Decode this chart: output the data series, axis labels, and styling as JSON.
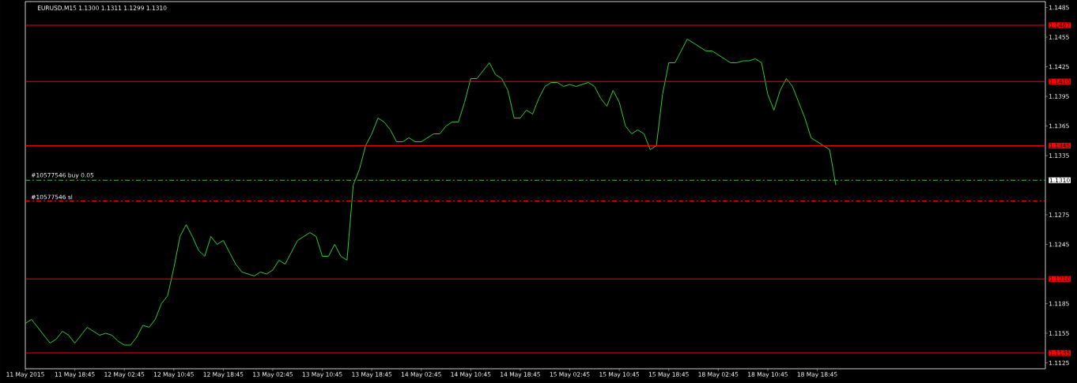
{
  "chart_data": {
    "type": "line",
    "title": "EURUSD,M15  1.1300 1.1311 1.1299 1.1310",
    "categories": [
      "11 May 2015",
      null,
      null,
      null,
      null,
      null,
      null,
      null,
      "11 May 18:45",
      null,
      null,
      null,
      null,
      null,
      null,
      null,
      "12 May 02:45",
      null,
      null,
      null,
      null,
      null,
      null,
      null,
      "12 May 10:45",
      null,
      null,
      null,
      null,
      null,
      null,
      null,
      "12 May 18:45",
      null,
      null,
      null,
      null,
      null,
      null,
      null,
      "13 May 02:45",
      null,
      null,
      null,
      null,
      null,
      null,
      null,
      "13 May 10:45",
      null,
      null,
      null,
      null,
      null,
      null,
      null,
      "13 May 18:45",
      null,
      null,
      null,
      null,
      null,
      null,
      null,
      "14 May 02:45",
      null,
      null,
      null,
      null,
      null,
      null,
      null,
      "14 May 10:45",
      null,
      null,
      null,
      null,
      null,
      null,
      null,
      "14 May 18:45",
      null,
      null,
      null,
      null,
      null,
      null,
      null,
      "15 May 02:45",
      null,
      null,
      null,
      null,
      null,
      null,
      null,
      "15 May 10:45",
      null,
      null,
      null,
      null,
      null,
      null,
      null,
      "15 May 18:45",
      null,
      null,
      null,
      null,
      null,
      null,
      null,
      "18 May 02:45",
      null,
      null,
      null,
      null,
      null,
      null,
      null,
      "18 May 10:45",
      null,
      null,
      null,
      null,
      null,
      null,
      null,
      "18 May 18:45",
      null,
      null,
      null,
      null,
      null,
      null,
      null,
      null,
      null,
      null,
      null,
      null,
      null,
      null,
      null,
      null,
      null,
      null,
      null,
      null,
      null,
      null,
      null,
      null,
      null,
      null,
      null,
      null,
      null,
      null,
      null,
      null,
      null,
      null,
      null,
      null
    ],
    "series": [
      {
        "color": "#32cd32",
        "values": [
          1.1165,
          1.1169,
          1.1161,
          1.1153,
          1.1145,
          1.1149,
          1.1157,
          1.1153,
          1.1145,
          1.1153,
          1.1161,
          1.1157,
          1.1153,
          1.1155,
          1.1153,
          1.1147,
          1.1143,
          1.1143,
          1.1151,
          1.1163,
          1.1161,
          1.1169,
          1.1185,
          1.1193,
          1.1221,
          1.1253,
          1.1265,
          1.1253,
          1.1239,
          1.1233,
          1.1253,
          1.1245,
          1.1249,
          1.1237,
          1.1225,
          1.1217,
          1.1215,
          1.1213,
          1.1217,
          1.1215,
          1.1219,
          1.1229,
          1.1225,
          1.1237,
          1.1249,
          1.1253,
          1.1257,
          1.1253,
          1.1233,
          1.1233,
          1.1245,
          1.1233,
          1.1229,
          1.1305,
          1.1321,
          1.1345,
          1.1357,
          1.1373,
          1.1369,
          1.1361,
          1.1349,
          1.1349,
          1.1353,
          1.1349,
          1.1349,
          1.1353,
          1.1357,
          1.1357,
          1.1365,
          1.1369,
          1.1369,
          1.1389,
          1.1413,
          1.1413,
          1.1421,
          1.1429,
          1.1417,
          1.1413,
          1.1401,
          1.1373,
          1.1373,
          1.1381,
          1.1377,
          1.1393,
          1.1405,
          1.1409,
          1.1409,
          1.1405,
          1.1407,
          1.1405,
          1.1407,
          1.1409,
          1.1405,
          1.1393,
          1.1385,
          1.1401,
          1.1389,
          1.1365,
          1.1357,
          1.1361,
          1.1357,
          1.1341,
          1.1345,
          1.1397,
          1.1429,
          1.1429,
          1.1441,
          1.1453,
          1.1449,
          1.1445,
          1.1441,
          1.1441,
          1.1437,
          1.1433,
          1.1429,
          1.1429,
          1.1431,
          1.1431,
          1.1433,
          1.1429,
          1.1397,
          1.1381,
          1.1401,
          1.1413,
          1.1405,
          1.1389,
          1.1373,
          1.1353,
          1.1349,
          1.1345,
          1.1341,
          1.1305,
          null,
          null,
          null,
          null,
          null,
          null,
          null,
          null,
          null,
          null,
          null,
          null,
          null,
          null,
          null,
          null,
          null,
          null,
          null,
          null,
          null,
          null,
          null,
          null,
          null,
          null,
          null,
          null,
          null,
          null,
          null,
          null,
          null
        ]
      }
    ],
    "ylim": [
      1.1119,
      1.1491
    ],
    "yticks": [
      1.1485,
      1.1455,
      1.1425,
      1.1395,
      1.1365,
      1.1335,
      1.1275,
      1.1245,
      1.1185,
      1.1155,
      1.1125
    ],
    "ref_lines": [
      {
        "axis": "y",
        "value": 1.1467,
        "label": "1.1467",
        "color": "#ff0000",
        "line_style": "solid"
      },
      {
        "axis": "y",
        "value": 1.141,
        "label": "1.1410",
        "color": "#ff0000",
        "line_style": "solid"
      },
      {
        "axis": "y",
        "value": 1.1345,
        "label": "1.1345",
        "color": "#ff0000",
        "line_style": "solid"
      },
      {
        "axis": "y",
        "value": 1.121,
        "label": "1.1210",
        "color": "#ff0000",
        "line_style": "solid"
      },
      {
        "axis": "y",
        "value": 1.1135,
        "label": "1.1135",
        "color": "#ff0000",
        "line_style": "solid"
      },
      {
        "axis": "y",
        "value": 1.131,
        "label": "#10577546 buy 0.05",
        "color": "#32cd32",
        "line_style": "dashed"
      },
      {
        "axis": "y",
        "value": 1.1289,
        "label": "#10577546 sl",
        "color": "#ff0000",
        "line_style": "dashed"
      }
    ],
    "annotations": [
      "1.1310"
    ],
    "marker": "none",
    "line_style": "solid"
  }
}
